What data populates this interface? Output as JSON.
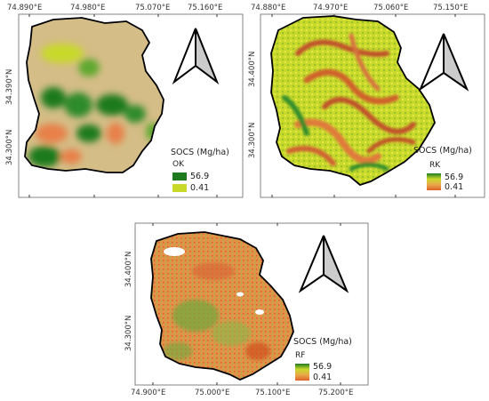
{
  "legend_title": "SOCS (Mg/ha)",
  "legend_max": "56.9",
  "legend_min": "0.41",
  "colors": {
    "high_green": "#1f7a1f",
    "low_yellow": "#c8d92a",
    "orange": "#e8804a",
    "background_tan": "#d4bd86",
    "mid_lime": "#9ac22e"
  },
  "maps": [
    {
      "method": "OK",
      "top_ticks": [
        "74.890°E",
        "74.980°E",
        "75.070°E",
        "75.160°E"
      ],
      "left_ticks": [
        "34.390°N",
        "34.300°N"
      ]
    },
    {
      "method": "RK",
      "top_ticks": [
        "74.880°E",
        "74.970°E",
        "75.060°E",
        "75.150°E"
      ],
      "left_ticks": [
        "34.400°N",
        "34.300°N"
      ]
    },
    {
      "method": "RF",
      "bottom_ticks": [
        "74.900°E",
        "75.000°E",
        "75.100°E",
        "75.200°E"
      ],
      "left_ticks": [
        "34.400°N",
        "34.300°N"
      ]
    }
  ],
  "north_arrow_icon": "north-arrow-icon"
}
